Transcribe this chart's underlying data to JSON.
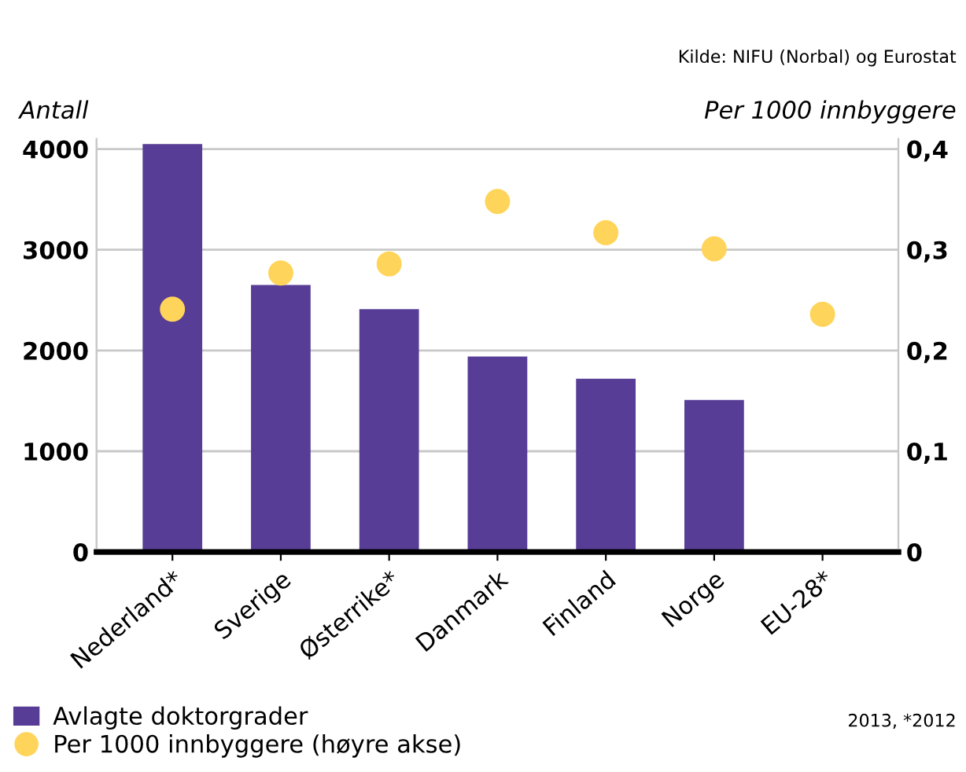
{
  "chart_data": {
    "type": "bar",
    "categories": [
      "Nederland*",
      "Sverige",
      "Østerrike*",
      "Danmark",
      "Finland",
      "Norge",
      "EU-28*"
    ],
    "series": [
      {
        "name": "Avlagte doktorgrader",
        "color": "#573d96",
        "values": [
          4050,
          2650,
          2410,
          1940,
          1720,
          1510,
          null
        ]
      },
      {
        "name": "Per 1000 innbyggere (høyre akse)",
        "color": "#ffd45a",
        "type": "scatter",
        "axis": "y2",
        "marker": "circle",
        "values": [
          0.241,
          0.277,
          0.286,
          0.348,
          0.317,
          0.301,
          0.236
        ]
      }
    ],
    "ylabel": "Antall",
    "y2label": "Per 1000 innbyggere",
    "ylim": [
      0,
      4100
    ],
    "yticks": [
      0,
      1000,
      2000,
      3000,
      4000
    ],
    "y2lim": [
      0,
      0.41
    ],
    "y2ticks": [
      {
        "value": 0,
        "label": "0"
      },
      {
        "value": 0.1,
        "label": "0,1"
      },
      {
        "value": 0.2,
        "label": "0,2"
      },
      {
        "value": 0.3,
        "label": "0,3"
      },
      {
        "value": 0.4,
        "label": "0,4"
      }
    ],
    "grid": "y",
    "legend": "bottom left",
    "annotations": [
      "Kilde: NIFU (Norbal) og Eurostat",
      "2013, *2012"
    ]
  }
}
